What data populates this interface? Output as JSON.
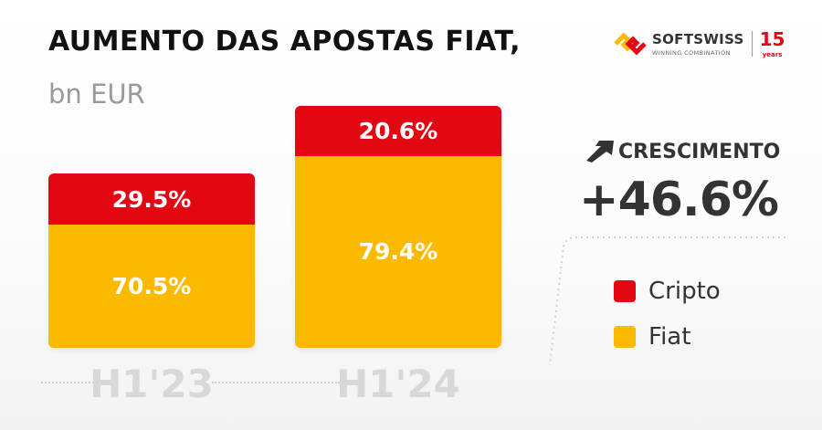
{
  "header": {
    "title": "AUMENTO DAS APOSTAS FIAT,",
    "subtitle": "bn EUR"
  },
  "logo": {
    "name": "SOFTSWISS",
    "tagline": "WINNING COMBINATION",
    "anniversary": "15",
    "anniversary_unit": "years"
  },
  "growth": {
    "label": "CRESCIMENTO",
    "value": "+46.6%",
    "icon": "arrow-up-right-icon"
  },
  "colors": {
    "cripto": "#e30613",
    "fiat": "#fbb900"
  },
  "chart_data": {
    "type": "bar",
    "stacked": true,
    "categories": [
      "H1'23",
      "H1'24"
    ],
    "series": [
      {
        "name": "Cripto",
        "values": [
          29.5,
          20.6
        ],
        "labels": [
          "29.5%",
          "20.6%"
        ]
      },
      {
        "name": "Fiat",
        "values": [
          70.5,
          79.4
        ],
        "labels": [
          "70.5%",
          "79.4%"
        ]
      }
    ],
    "legend": "right",
    "grid": false
  }
}
